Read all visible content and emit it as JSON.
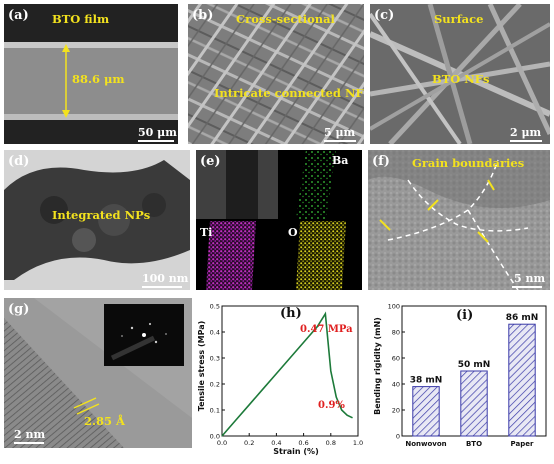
{
  "panels": {
    "a": {
      "label": "(a)",
      "title": "BTO film",
      "measure": "88.6 μm",
      "scale": "50 μm"
    },
    "b": {
      "label": "(b)",
      "title": "Cross-sectional",
      "note": "Intricate connected NFs",
      "scale": "5 μm"
    },
    "c": {
      "label": "(c)",
      "title": "Surface",
      "note": "BTO NFs",
      "scale": "2 μm"
    },
    "d": {
      "label": "(d)",
      "note": "Integrated NPs",
      "scale": "100 nm"
    },
    "e": {
      "label": "(e)",
      "elements": [
        "Ba",
        "Ti",
        "O"
      ]
    },
    "f": {
      "label": "(f)",
      "title": "Grain boundaries",
      "scale": "5 nm"
    },
    "g": {
      "label": "(g)",
      "measure": "2.85 Å",
      "scale": "2 nm"
    },
    "h": {
      "label": "(h)",
      "peak_annotation": "0.47 MPa",
      "strain_annotation": "0.9%"
    },
    "i": {
      "label": "(i)"
    }
  },
  "colors": {
    "annotation_yellow": "#f3e21e",
    "stress_curve": "#1d7a3a",
    "annotation_red": "#e02020",
    "bar_blue": "#3a3aa8"
  },
  "chart_data": [
    {
      "type": "line",
      "panel": "h",
      "xlabel": "Strain (%)",
      "ylabel": "Tensile stress (MPa)",
      "xlim": [
        0.0,
        1.0
      ],
      "ylim": [
        0.0,
        0.5
      ],
      "xticks": [
        "0.0",
        "0.2",
        "0.4",
        "0.6",
        "0.8",
        "1.0"
      ],
      "yticks": [
        "0.0",
        "0.1",
        "0.2",
        "0.3",
        "0.4",
        "0.5"
      ],
      "series": [
        {
          "x": [
            0.0,
            0.1,
            0.2,
            0.3,
            0.4,
            0.5,
            0.6,
            0.7,
            0.76,
            0.8,
            0.84,
            0.88,
            0.92,
            0.96
          ],
          "y": [
            0.0,
            0.06,
            0.12,
            0.18,
            0.24,
            0.3,
            0.36,
            0.42,
            0.47,
            0.25,
            0.15,
            0.1,
            0.08,
            0.07
          ]
        }
      ]
    },
    {
      "type": "bar",
      "panel": "i",
      "ylabel": "Bending rigidity (mN)",
      "categories": [
        "Nonwovon",
        "BTO",
        "Paper"
      ],
      "values": [
        38,
        50,
        86
      ],
      "value_labels": [
        "38 mN",
        "50 mN",
        "86 mN"
      ],
      "ylim": [
        0,
        100
      ],
      "yticks": [
        "0",
        "20",
        "40",
        "60",
        "80",
        "100"
      ]
    }
  ]
}
